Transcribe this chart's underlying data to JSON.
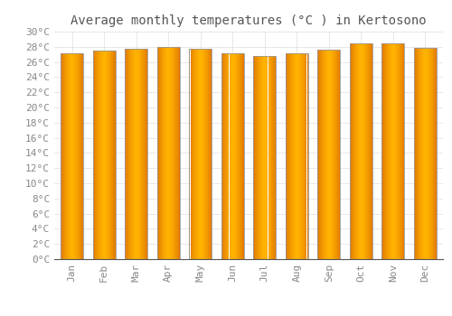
{
  "title": "Average monthly temperatures (°C ) in Kertosono",
  "months": [
    "Jan",
    "Feb",
    "Mar",
    "Apr",
    "May",
    "Jun",
    "Jul",
    "Aug",
    "Sep",
    "Oct",
    "Nov",
    "Dec"
  ],
  "values": [
    27.2,
    27.5,
    27.7,
    28.0,
    27.7,
    27.1,
    26.8,
    27.1,
    27.6,
    28.4,
    28.5,
    27.9
  ],
  "ylim": [
    0,
    30
  ],
  "ytick_step": 2,
  "bar_color_center": "#FFB300",
  "bar_color_edge": "#E07800",
  "bar_edge_color": "#999999",
  "background_color": "#ffffff",
  "plot_bg_color": "#ffffff",
  "grid_color": "#dddddd",
  "title_fontsize": 10,
  "tick_fontsize": 8,
  "tick_label_color": "#888888",
  "title_color": "#555555",
  "font_family": "monospace",
  "bar_width": 0.7,
  "figsize": [
    5.0,
    3.5
  ],
  "dpi": 100
}
